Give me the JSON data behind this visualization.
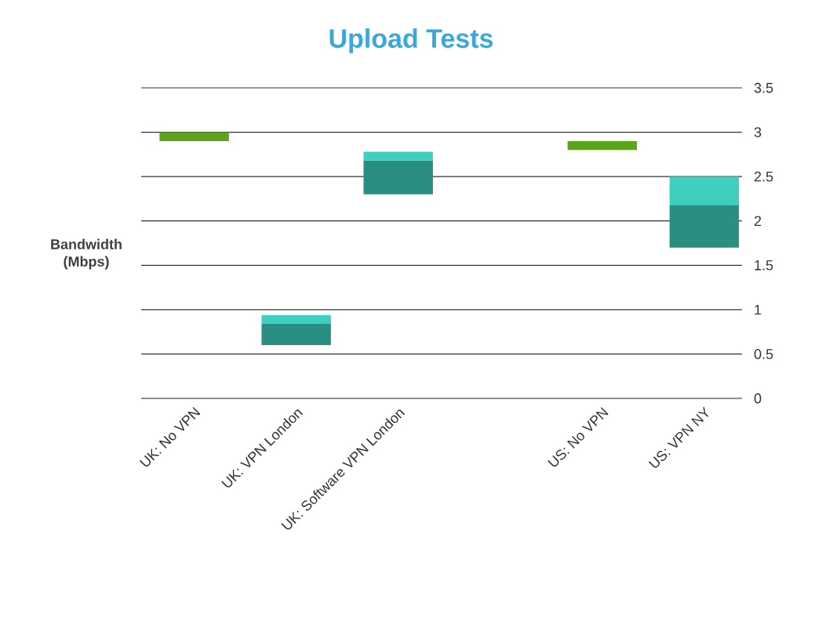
{
  "chart_data": {
    "type": "bar",
    "title": "Upload Tests",
    "ylabel": "Bandwidth (Mbps)",
    "categories": [
      "UK: No VPN",
      "UK: VPN London",
      "UK: Software VPN London",
      null,
      "US: No VPN",
      "US: VPN NY"
    ],
    "series": [
      {
        "color": "#5aa51c",
        "values": [
          0.1,
          null,
          null,
          null,
          0.1,
          null
        ],
        "base": [
          2.9,
          null,
          null,
          null,
          2.8,
          null
        ]
      },
      {
        "color": "#2a8f82",
        "values": [
          null,
          0.24,
          0.38,
          null,
          null,
          0.48
        ],
        "base": [
          null,
          0.6,
          2.3,
          null,
          null,
          1.7
        ]
      },
      {
        "color": "#3ecfbf",
        "values": [
          null,
          0.1,
          0.1,
          null,
          null,
          0.32
        ],
        "base": [
          null,
          0.84,
          2.68,
          null,
          null,
          2.18
        ]
      }
    ],
    "ylim": [
      0,
      3.5
    ],
    "yticks": [
      0,
      0.5,
      1,
      1.5,
      2,
      2.5,
      3,
      3.5
    ],
    "grid": "y"
  }
}
